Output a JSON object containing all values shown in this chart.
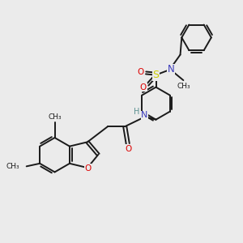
{
  "background_color": "#ebebeb",
  "line_color": "#1a1a1a",
  "bond_width": 1.4,
  "figsize": [
    3.0,
    3.0
  ],
  "dpi": 100,
  "colors": {
    "N": "#3b3bbb",
    "H_NH": "#5a9090",
    "O_red": "#dd0000",
    "S": "#cccc00",
    "C": "#1a1a1a"
  },
  "xlim": [
    0,
    10
  ],
  "ylim": [
    0,
    10
  ]
}
